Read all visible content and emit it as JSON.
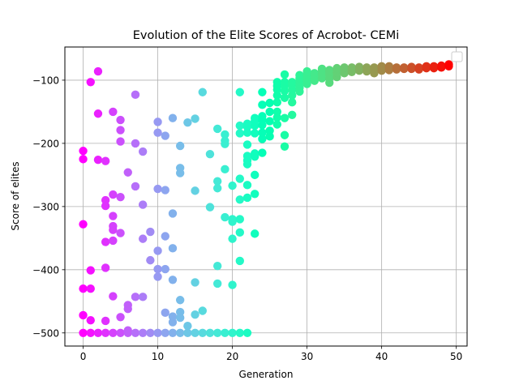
{
  "chart_data": {
    "type": "scatter",
    "title": "Evolution of the Elite Scores of Acrobot- CEMi",
    "xlabel": "Generation",
    "ylabel": "Score of elites",
    "xlim": [
      -2.45,
      51.45
    ],
    "ylim": [
      -520.8,
      -47.5
    ],
    "xticks": [
      0,
      10,
      20,
      30,
      40,
      50
    ],
    "yticks": [
      -500,
      -400,
      -300,
      -200,
      -100
    ],
    "xtick_labels": [
      "0",
      "10",
      "20",
      "30",
      "40",
      "50"
    ],
    "ytick_labels": [
      "−500",
      "−400",
      "−300",
      "−200",
      "−100"
    ],
    "grid": true,
    "legend": "top-right (empty)",
    "color_mapping": "rainbow by generation (0 = purple, 49 = red)",
    "points": [
      {
        "x": 0,
        "ys": [
          -500,
          -472,
          -430,
          -328,
          -225,
          -212
        ]
      },
      {
        "x": 1,
        "ys": [
          -500,
          -480,
          -430,
          -401,
          -103
        ]
      },
      {
        "x": 2,
        "ys": [
          -500,
          -226,
          -153,
          -86
        ]
      },
      {
        "x": 3,
        "ys": [
          -500,
          -481,
          -397,
          -356,
          -299,
          -290,
          -228
        ]
      },
      {
        "x": 4,
        "ys": [
          -500,
          -442,
          -354,
          -337,
          -331,
          -315,
          -281,
          -150
        ]
      },
      {
        "x": 5,
        "ys": [
          -500,
          -475,
          -342,
          -285,
          -197,
          -179,
          -163
        ]
      },
      {
        "x": 6,
        "ys": [
          -500,
          -496,
          -462,
          -456,
          -246
        ]
      },
      {
        "x": 7,
        "ys": [
          -500,
          -443,
          -268,
          -200,
          -123
        ]
      },
      {
        "x": 8,
        "ys": [
          -500,
          -443,
          -351,
          -297,
          -213
        ]
      },
      {
        "x": 9,
        "ys": [
          -500,
          -385,
          -340
        ]
      },
      {
        "x": 10,
        "ys": [
          -500,
          -411,
          -399,
          -370,
          -272,
          -183,
          -166
        ]
      },
      {
        "x": 11,
        "ys": [
          -500,
          -468,
          -399,
          -347,
          -274,
          -188
        ]
      },
      {
        "x": 12,
        "ys": [
          -500,
          -483,
          -474,
          -416,
          -366,
          -311,
          -160
        ]
      },
      {
        "x": 13,
        "ys": [
          -500,
          -476,
          -467,
          -448,
          -247,
          -239,
          -204
        ]
      },
      {
        "x": 14,
        "ys": [
          -500,
          -489,
          -167
        ]
      },
      {
        "x": 15,
        "ys": [
          -500,
          -471,
          -420,
          -275,
          -161
        ]
      },
      {
        "x": 16,
        "ys": [
          -500,
          -465,
          -119
        ]
      },
      {
        "x": 17,
        "ys": [
          -500,
          -301,
          -217
        ]
      },
      {
        "x": 18,
        "ys": [
          -500,
          -422,
          -394,
          -271,
          -260,
          -177
        ]
      },
      {
        "x": 19,
        "ys": [
          -500,
          -317,
          -241,
          -201,
          -196,
          -186
        ]
      },
      {
        "x": 20,
        "ys": [
          -500,
          -424,
          -351,
          -324,
          -320,
          -267
        ]
      },
      {
        "x": 21,
        "ys": [
          -500,
          -386,
          -341,
          -320,
          -289,
          -256,
          -184,
          -172,
          -119
        ]
      },
      {
        "x": 22,
        "ys": [
          -500,
          -286,
          -266,
          -233,
          -227,
          -220,
          -202,
          -183,
          -174,
          -169
        ]
      },
      {
        "x": 23,
        "ys": [
          -343,
          -280,
          -250,
          -221,
          -216,
          -184,
          -172,
          -165,
          -160
        ]
      },
      {
        "x": 24,
        "ys": [
          -215,
          -193,
          -183,
          -171,
          -163,
          -157,
          -139,
          -119
        ]
      },
      {
        "x": 25,
        "ys": [
          -189,
          -180,
          -165,
          -150,
          -136
        ]
      },
      {
        "x": 26,
        "ys": [
          -170,
          -159,
          -150,
          -135,
          -124,
          -115,
          -109,
          -103
        ]
      },
      {
        "x": 27,
        "ys": [
          -205,
          -187,
          -160,
          -128,
          -117,
          -109,
          -103,
          -91
        ]
      },
      {
        "x": 28,
        "ys": [
          -155,
          -135,
          -124,
          -115,
          -107,
          -103
        ]
      },
      {
        "x": 29,
        "ys": [
          -118,
          -112,
          -106,
          -102,
          -97,
          -92
        ]
      },
      {
        "x": 30,
        "ys": [
          -106,
          -100,
          -95,
          -91,
          -86
        ]
      },
      {
        "x": 31,
        "ys": [
          -101,
          -97,
          -92,
          -89
        ]
      },
      {
        "x": 32,
        "ys": [
          -97,
          -91,
          -86,
          -82
        ]
      },
      {
        "x": 33,
        "ys": [
          -104,
          -97,
          -91,
          -87,
          -84
        ]
      },
      {
        "x": 34,
        "ys": [
          -95,
          -88,
          -83,
          -81
        ]
      },
      {
        "x": 35,
        "ys": [
          -89,
          -84,
          -80
        ]
      },
      {
        "x": 36,
        "ys": [
          -87,
          -83,
          -80
        ]
      },
      {
        "x": 37,
        "ys": [
          -85,
          -82,
          -79
        ]
      },
      {
        "x": 38,
        "ys": [
          -86,
          -80
        ]
      },
      {
        "x": 39,
        "ys": [
          -89,
          -84,
          -80
        ]
      },
      {
        "x": 40,
        "ys": [
          -85,
          -80,
          -78
        ]
      },
      {
        "x": 41,
        "ys": [
          -84,
          -80,
          -78
        ]
      },
      {
        "x": 42,
        "ys": [
          -83,
          -80
        ]
      },
      {
        "x": 43,
        "ys": [
          -82,
          -80
        ]
      },
      {
        "x": 44,
        "ys": [
          -82,
          -79
        ]
      },
      {
        "x": 45,
        "ys": [
          -83,
          -80
        ]
      },
      {
        "x": 46,
        "ys": [
          -81,
          -78
        ]
      },
      {
        "x": 47,
        "ys": [
          -81,
          -78
        ]
      },
      {
        "x": 48,
        "ys": [
          -80,
          -77
        ]
      },
      {
        "x": 49,
        "ys": [
          -78,
          -75
        ]
      }
    ]
  }
}
